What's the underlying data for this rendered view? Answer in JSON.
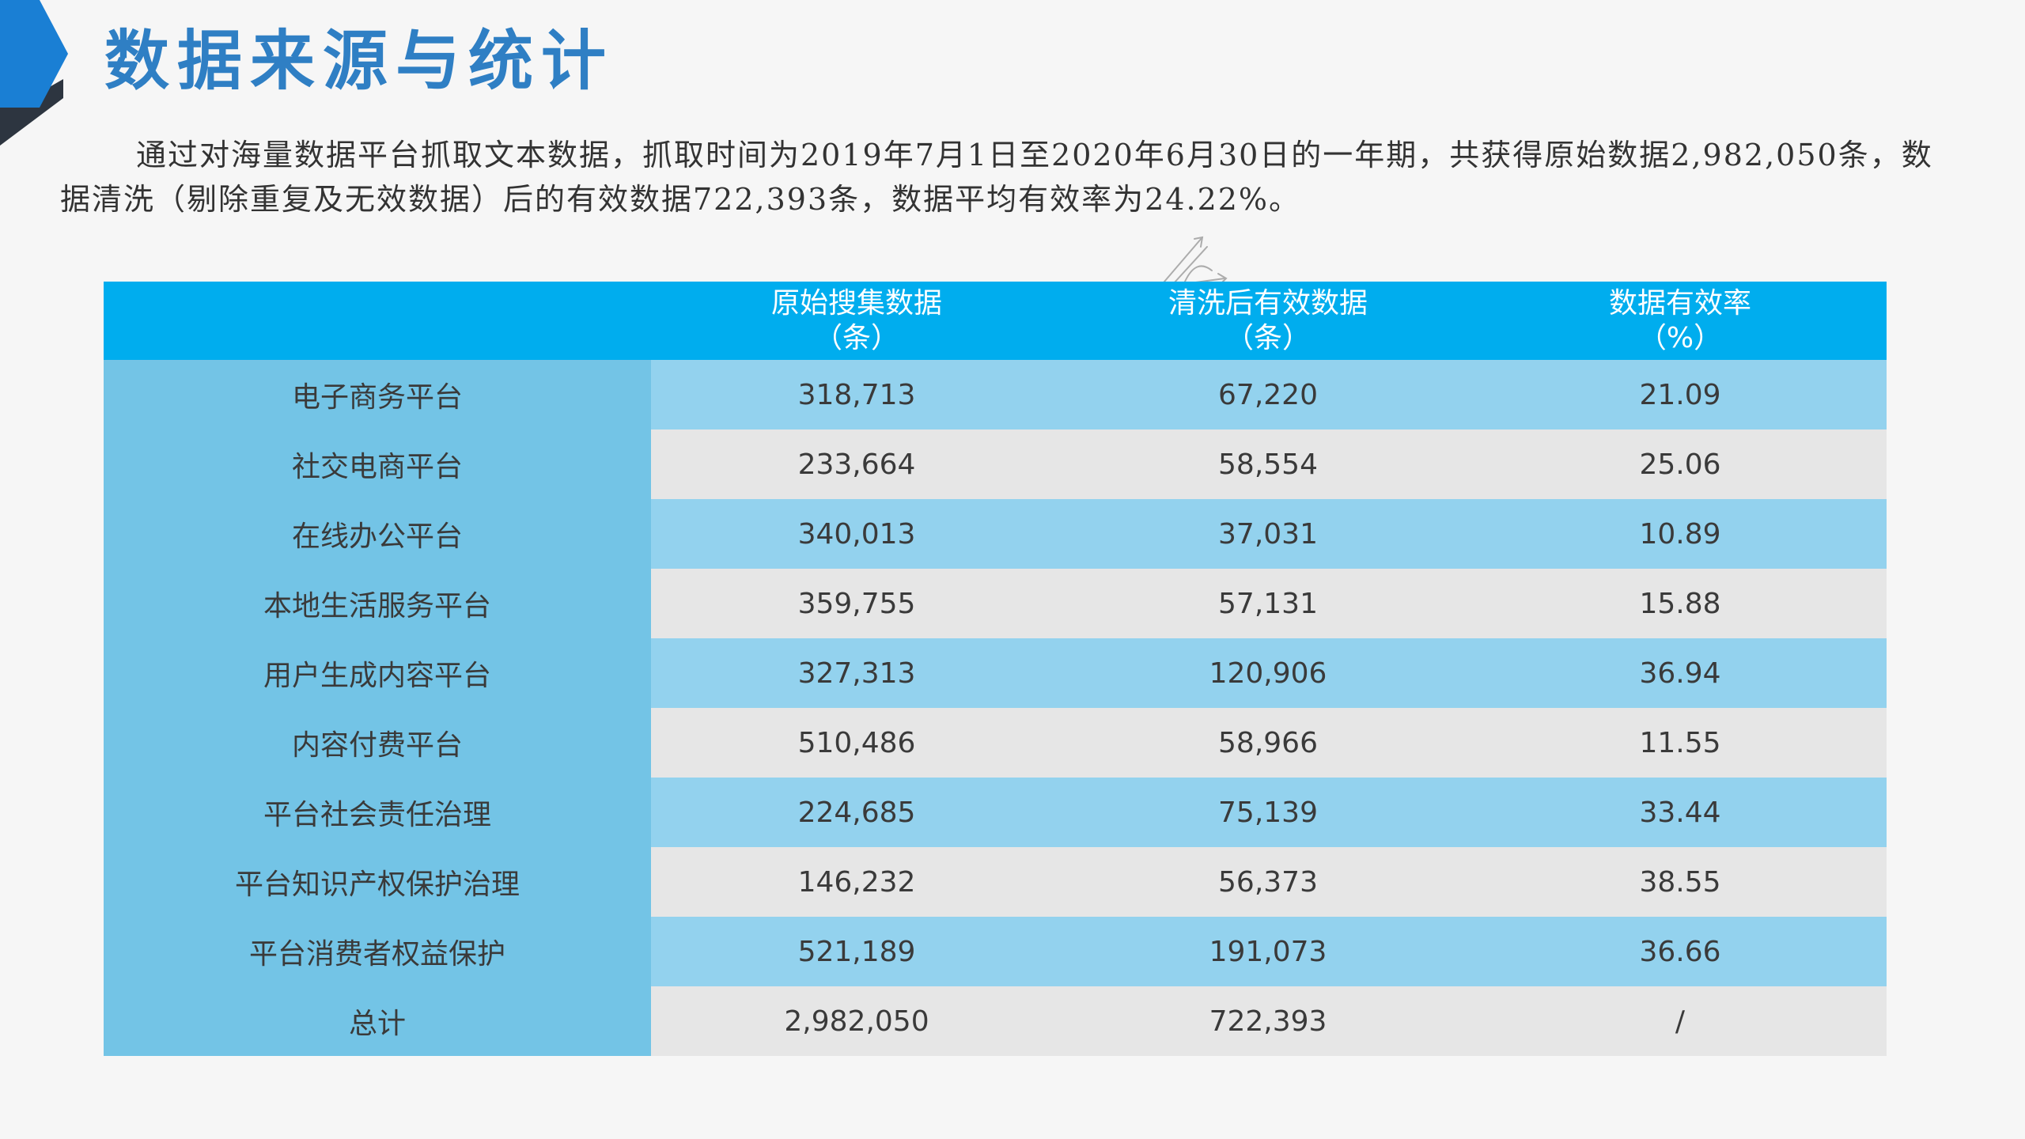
{
  "page": {
    "title": "数据来源与统计",
    "intro": "通过对海量数据平台抓取文本数据，抓取时间为2019年7月1日至2020年6月30日的一年期，共获得原始数据2,982,050条，数据清洗（剔除重复及无效数据）后的有效数据722,393条，数据平均有效率为24.22%。"
  },
  "colors": {
    "accent": "#2f7fc4",
    "header_bg": "#00adee",
    "label_col_bg": "#73c4e6",
    "row_blue_bg": "#93d2ee",
    "row_gray_bg": "#e6e6e6",
    "corner_blue": "#1a7fd4",
    "corner_dark": "#2d3540"
  },
  "icons": {
    "corner": "corner-chevron-icon",
    "watermark": "sketch-arrows-watermark-icon"
  },
  "table": {
    "headers": [
      {
        "line1": "",
        "line2": ""
      },
      {
        "line1": "原始搜集数据",
        "line2": "（条）"
      },
      {
        "line1": "清洗后有效数据",
        "line2": "（条）"
      },
      {
        "line1": "数据有效率",
        "line2": "（%）"
      }
    ],
    "rows": [
      {
        "platform": "电子商务平台",
        "raw": "318,713",
        "clean": "67,220",
        "rate": "21.09"
      },
      {
        "platform": "社交电商平台",
        "raw": "233,664",
        "clean": "58,554",
        "rate": "25.06"
      },
      {
        "platform": "在线办公平台",
        "raw": "340,013",
        "clean": "37,031",
        "rate": "10.89"
      },
      {
        "platform": "本地生活服务平台",
        "raw": "359,755",
        "clean": "57,131",
        "rate": "15.88"
      },
      {
        "platform": "用户生成内容平台",
        "raw": "327,313",
        "clean": "120,906",
        "rate": "36.94"
      },
      {
        "platform": "内容付费平台",
        "raw": "510,486",
        "clean": "58,966",
        "rate": "11.55"
      },
      {
        "platform": "平台社会责任治理",
        "raw": "224,685",
        "clean": "75,139",
        "rate": "33.44"
      },
      {
        "platform": "平台知识产权保护治理",
        "raw": "146,232",
        "clean": "56,373",
        "rate": "38.55"
      },
      {
        "platform": "平台消费者权益保护",
        "raw": "521,189",
        "clean": "191,073",
        "rate": "36.66"
      },
      {
        "platform": "总计",
        "raw": "2,982,050",
        "clean": "722,393",
        "rate": "/"
      }
    ]
  }
}
